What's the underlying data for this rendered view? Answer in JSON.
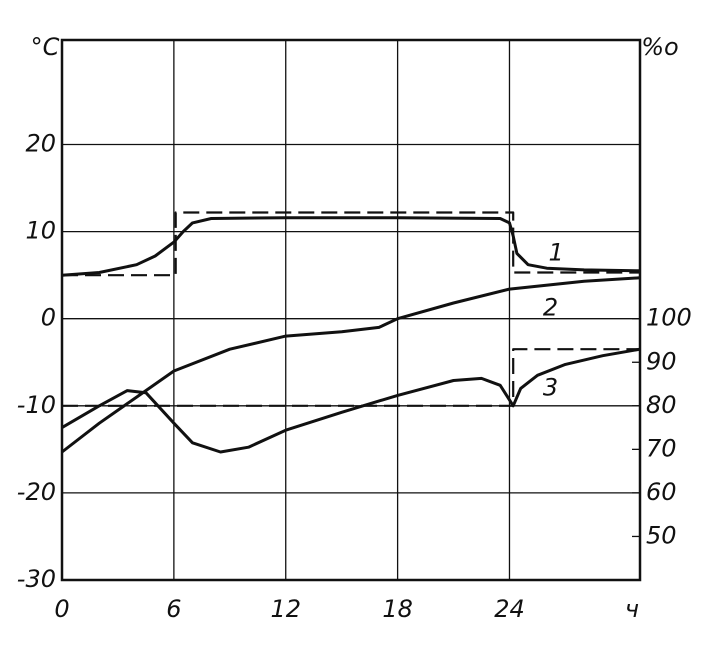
{
  "chart_data": {
    "type": "line",
    "y_label": "°C",
    "y2_label": "%o",
    "xlim": [
      0,
      31
    ],
    "xticks": [
      0,
      6,
      12,
      18,
      24,
      {
        "value": 31,
        "label": "ч"
      }
    ],
    "ylim": [
      -30,
      32
    ],
    "yticks": [
      -30,
      -20,
      -10,
      0,
      10,
      20
    ],
    "y2lim": [
      40,
      164
    ],
    "y2ticks": [
      50,
      60,
      70,
      80,
      90,
      100
    ],
    "grid": true,
    "series": [
      {
        "name": "1",
        "color": "#111",
        "dash": false,
        "x": [
          0,
          2,
          4,
          5,
          6,
          6.5,
          7,
          8,
          12,
          18,
          23.5,
          24,
          24.2,
          24.4,
          25,
          26,
          28,
          31
        ],
        "values": [
          5,
          5.3,
          6.2,
          7.2,
          8.8,
          10,
          11,
          11.5,
          11.6,
          11.6,
          11.5,
          11,
          9.5,
          7.5,
          6.2,
          5.8,
          5.6,
          5.5
        ]
      },
      {
        "color": "#111",
        "dash": true,
        "x": [
          0,
          6.1,
          6.1,
          24.2,
          24.2,
          31
        ],
        "values": [
          5,
          5,
          12.2,
          12.2,
          5.3,
          5.3
        ]
      },
      {
        "name": "2",
        "color": "#111",
        "dash": false,
        "x": [
          0,
          2,
          4,
          6,
          9,
          12,
          15,
          17,
          18,
          21,
          24,
          28,
          31
        ],
        "values": [
          -15.3,
          -12,
          -9,
          -6,
          -3.5,
          -2,
          -1.5,
          -1,
          0,
          1.8,
          3.4,
          4.3,
          4.7
        ]
      },
      {
        "name": "3",
        "color": "#111",
        "dash": false,
        "axis": "y2",
        "x": [
          0,
          2,
          3.5,
          4.5,
          6,
          7,
          8.5,
          10,
          12,
          15,
          18,
          21,
          22.5,
          23.5,
          24.2,
          24.6,
          25.5,
          27,
          29,
          31
        ],
        "values": [
          75,
          80,
          83.5,
          83,
          76,
          71.5,
          69.4,
          70.5,
          74.4,
          78.5,
          82.4,
          85.8,
          86.3,
          84.7,
          80,
          84,
          87,
          89.5,
          91.5,
          93
        ]
      },
      {
        "color": "#111",
        "dash": true,
        "axis": "y2",
        "x": [
          0,
          24.2,
          24.2,
          31
        ],
        "values": [
          80,
          80,
          93,
          93
        ]
      }
    ]
  }
}
